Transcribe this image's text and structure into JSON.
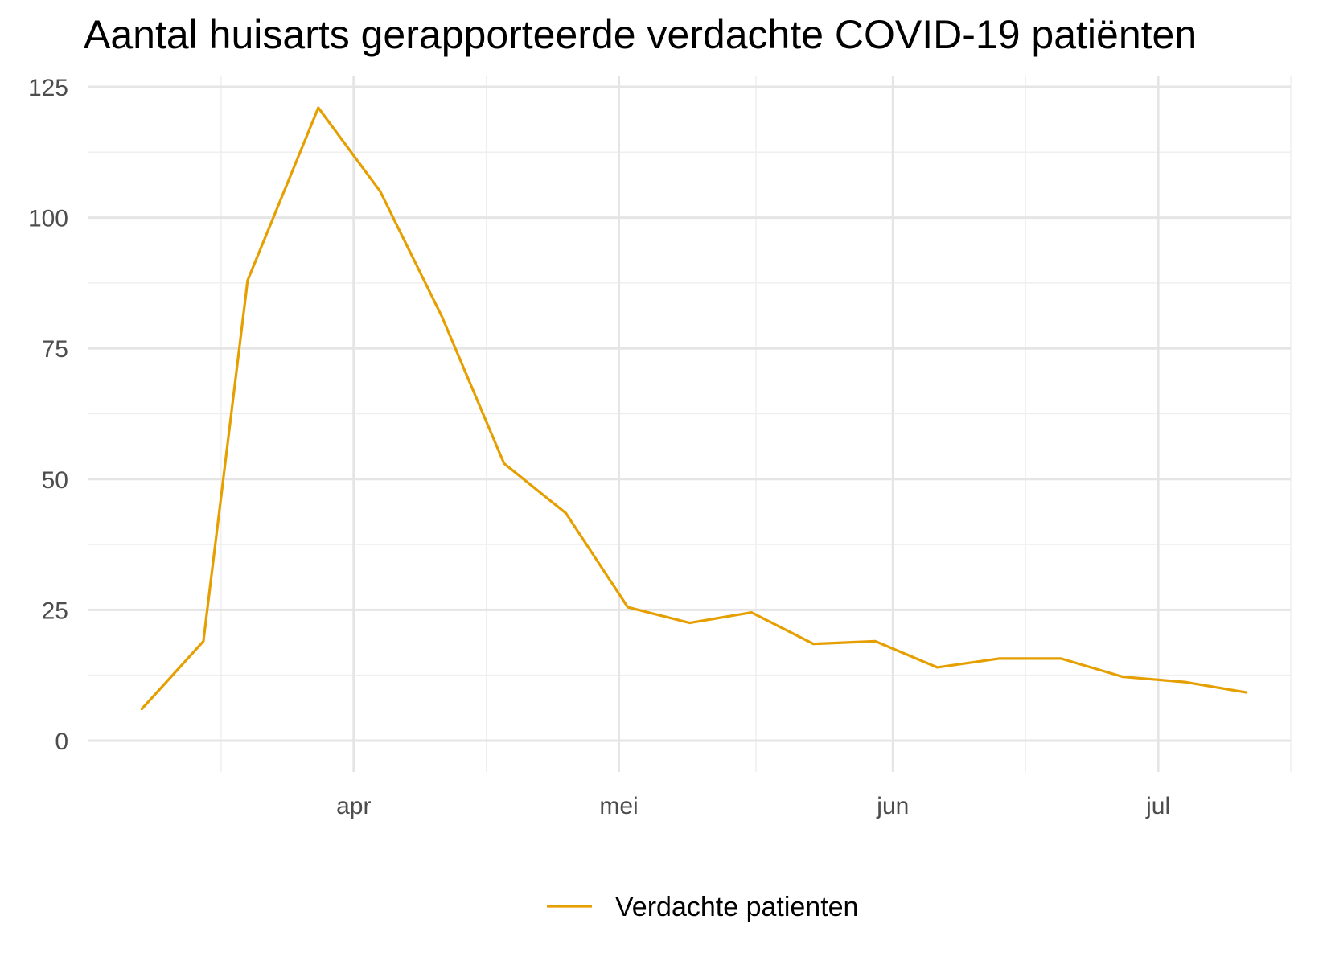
{
  "chart_data": {
    "type": "line",
    "title": "Aantal huisarts gerapporteerde verdachte COVID-19 patiënten",
    "xlabel": "",
    "ylabel": "",
    "x_type": "date",
    "x_ticks": [
      {
        "label": "apr",
        "date": "2020-04-01"
      },
      {
        "label": "mei",
        "date": "2020-05-01"
      },
      {
        "label": "jun",
        "date": "2020-06-01"
      },
      {
        "label": "jul",
        "date": "2020-07-01"
      }
    ],
    "xlim": [
      "2020-03-02",
      "2020-07-16"
    ],
    "y_ticks": [
      0,
      25,
      50,
      75,
      100,
      125
    ],
    "ylim": [
      -6,
      127
    ],
    "grid": true,
    "legend_position": "bottom",
    "series": [
      {
        "name": "Verdachte patienten",
        "color": "#E69F00",
        "points": [
          {
            "x": "2020-03-08",
            "y": 6
          },
          {
            "x": "2020-03-15",
            "y": 19
          },
          {
            "x": "2020-03-20",
            "y": 88
          },
          {
            "x": "2020-03-28",
            "y": 121
          },
          {
            "x": "2020-04-04",
            "y": 105
          },
          {
            "x": "2020-04-11",
            "y": 81
          },
          {
            "x": "2020-04-18",
            "y": 53
          },
          {
            "x": "2020-04-25",
            "y": 43.5
          },
          {
            "x": "2020-05-02",
            "y": 25.5
          },
          {
            "x": "2020-05-09",
            "y": 22.5
          },
          {
            "x": "2020-05-16",
            "y": 24.5
          },
          {
            "x": "2020-05-23",
            "y": 18.5
          },
          {
            "x": "2020-05-30",
            "y": 19
          },
          {
            "x": "2020-06-06",
            "y": 14
          },
          {
            "x": "2020-06-13",
            "y": 15.7
          },
          {
            "x": "2020-06-20",
            "y": 15.7
          },
          {
            "x": "2020-06-27",
            "y": 12.2
          },
          {
            "x": "2020-07-04",
            "y": 11.2
          },
          {
            "x": "2020-07-11",
            "y": 9.2
          }
        ]
      }
    ]
  }
}
